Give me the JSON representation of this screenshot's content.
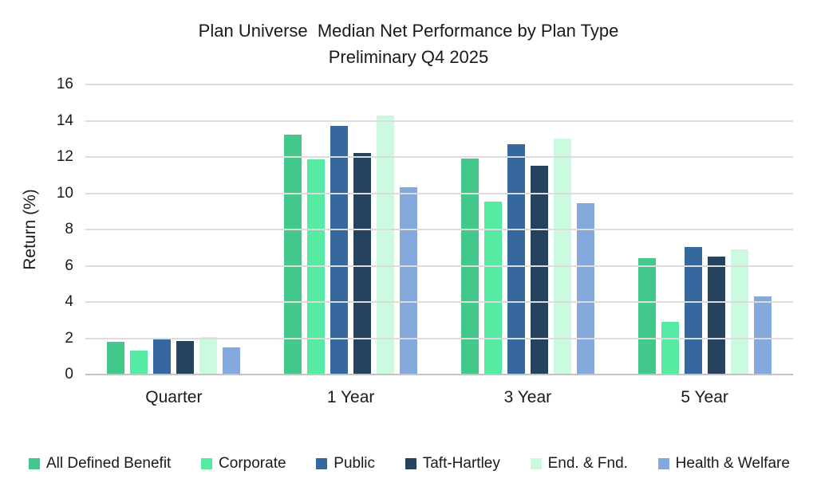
{
  "chart_data": {
    "type": "bar",
    "title": "Plan Universe  Median Net Performance by Plan Type",
    "subtitle": "Preliminary Q4 2025",
    "ylabel": "Return (%)",
    "xlabel": "",
    "categories": [
      "Quarter",
      "1 Year",
      "3 Year",
      "5 Year"
    ],
    "series": [
      {
        "name": "All Defined Benefit",
        "color": "#41c88a",
        "values": [
          1.8,
          13.25,
          11.9,
          6.4
        ]
      },
      {
        "name": "Corporate",
        "color": "#55eba2",
        "values": [
          1.3,
          11.85,
          9.55,
          2.9
        ]
      },
      {
        "name": "Public",
        "color": "#36689e",
        "values": [
          1.95,
          13.7,
          12.7,
          7.05
        ]
      },
      {
        "name": "Taft-Hartley",
        "color": "#25425e",
        "values": [
          1.85,
          12.2,
          11.5,
          6.5
        ]
      },
      {
        "name": "End. & Fnd.",
        "color": "#ccfae0",
        "values": [
          2.05,
          14.3,
          13.0,
          6.9
        ]
      },
      {
        "name": "Health & Welfare",
        "color": "#84a9dc",
        "values": [
          1.5,
          10.35,
          9.45,
          4.3
        ]
      }
    ],
    "ylim": [
      0,
      16
    ],
    "ytick_step": 2,
    "grid": true,
    "legend_position": "bottom",
    "colors": {
      "gridline": "#dcdcdc",
      "axis_line": "#c3c3c3",
      "text": "#1a1a1a",
      "background": "#ffffff"
    }
  }
}
